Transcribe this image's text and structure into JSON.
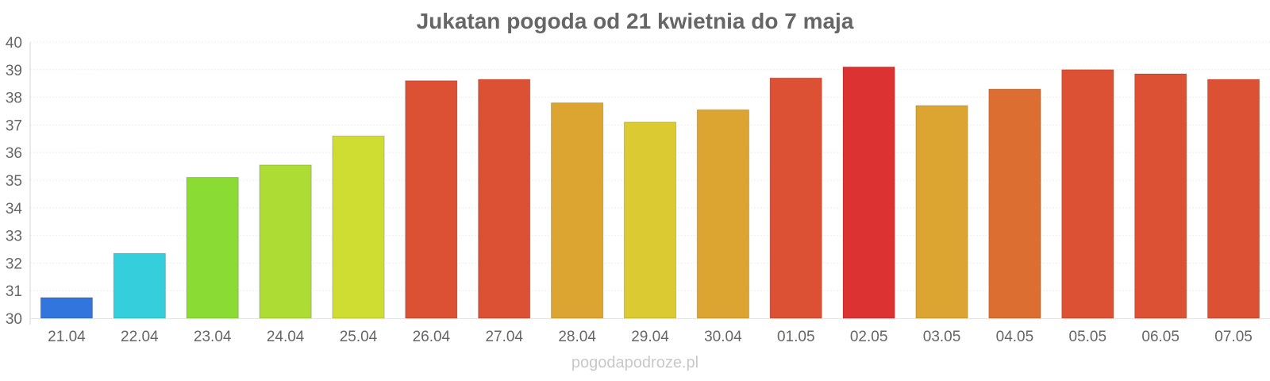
{
  "chart_data": {
    "type": "bar",
    "title": "Jukatan pogoda od 21 kwietnia do 7 maja",
    "xlabel": "",
    "ylabel": "",
    "categories": [
      "21.04",
      "22.04",
      "23.04",
      "24.04",
      "25.04",
      "26.04",
      "27.04",
      "28.04",
      "29.04",
      "30.04",
      "01.05",
      "02.05",
      "03.05",
      "04.05",
      "05.05",
      "06.05",
      "07.05"
    ],
    "values": [
      30.75,
      32.35,
      35.1,
      35.55,
      36.6,
      38.6,
      38.65,
      37.8,
      37.1,
      37.55,
      38.7,
      39.1,
      37.7,
      38.3,
      39.0,
      38.85,
      38.65
    ],
    "colors": [
      "#3275dd",
      "#35cedc",
      "#8adc35",
      "#addc35",
      "#cfdc32",
      "#dc5034",
      "#dc5034",
      "#dca532",
      "#dcca32",
      "#dca532",
      "#dc5034",
      "#dc3232",
      "#dca532",
      "#dc6e32",
      "#dc5034",
      "#dc5034",
      "#dc5034"
    ],
    "ylim": [
      30,
      40
    ],
    "yticks": [
      "30",
      "31",
      "32",
      "33",
      "34",
      "35",
      "36",
      "37",
      "38",
      "39",
      "40"
    ],
    "grid": true,
    "legend": "none"
  },
  "watermark": "pogodapodroze.pl"
}
